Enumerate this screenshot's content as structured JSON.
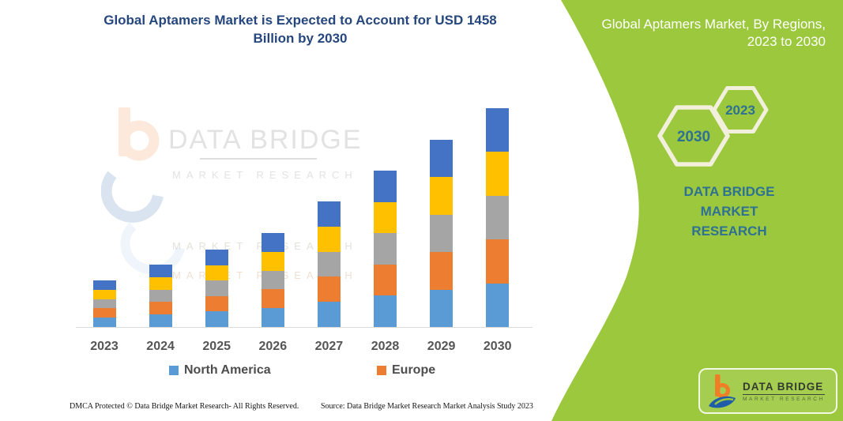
{
  "chart_section": {
    "title": "Global Aptamers Market is Expected to Account for USD 1458\nBillion by 2030",
    "title_color": "#26477d",
    "legend": [
      {
        "label": "North America",
        "color": "#5B9BD5"
      },
      {
        "label": "Europe",
        "color": "#ED7D31"
      }
    ],
    "watermark": {
      "brand": "DATA BRIDGE",
      "sub": "MARKET RESEARCH",
      "ghost1": "MARKET RESEARCH",
      "ghost2": "MARKET RESEARCH"
    },
    "footer_left": "DMCA Protected © Data Bridge Market Research-  All Rights Reserved.",
    "footer_source": "Source: Data Bridge Market Research  Market Analysis Study 2023"
  },
  "chart_data": {
    "type": "bar",
    "subtype": "stacked",
    "title": "Global Aptamers Market is Expected to Account for USD 1458 Billion by 2030",
    "categories": [
      "2023",
      "2024",
      "2025",
      "2026",
      "2027",
      "2028",
      "2029",
      "2030"
    ],
    "unit": "USD Billion (estimated; y-axis unlabeled, scaled so 2030 total = 1458)",
    "series": [
      {
        "name": "North America",
        "color": "#5B9BD5",
        "values": [
          62,
          83.2,
          103.2,
          125.2,
          167.4,
          208.4,
          249.4,
          291.6
        ]
      },
      {
        "name": "Europe",
        "color": "#ED7D31",
        "values": [
          62,
          83.2,
          103.2,
          125.2,
          167.4,
          208.4,
          249.4,
          291.6
        ]
      },
      {
        "name": "unlabeled-gray-region",
        "color": "#A5A5A5",
        "values": [
          62,
          83.2,
          103.2,
          125.2,
          167.4,
          208.4,
          249.4,
          291.6
        ]
      },
      {
        "name": "unlabeled-yellow-region",
        "color": "#FFC000",
        "values": [
          62,
          83.2,
          103.2,
          125.2,
          167.4,
          208.4,
          249.4,
          291.6
        ]
      },
      {
        "name": "unlabeled-darkblue-region",
        "color": "#4472C4",
        "values": [
          62,
          83.2,
          103.2,
          125.2,
          167.4,
          208.4,
          249.4,
          291.6
        ]
      }
    ],
    "totals": [
      310,
      416,
      516,
      626,
      837,
      1042,
      1247,
      1458
    ],
    "ylim": [
      0,
      1500
    ],
    "grid": false,
    "legend_visible": [
      "North America",
      "Europe"
    ],
    "legend_position": "bottom",
    "xlabel": "",
    "ylabel": ""
  },
  "right_panel": {
    "bg_color": "#9BC83D",
    "heading_line1": "Global Aptamers Market, By Regions,",
    "heading_line2": "2023 to 2030",
    "hex_large_year": "2030",
    "hex_small_year": "2023",
    "brand_text": "DATA BRIDGE MARKET\nRESEARCH",
    "logo": {
      "title": "DATA BRIDGE",
      "subtitle": "MARKET RESEARCH"
    }
  }
}
